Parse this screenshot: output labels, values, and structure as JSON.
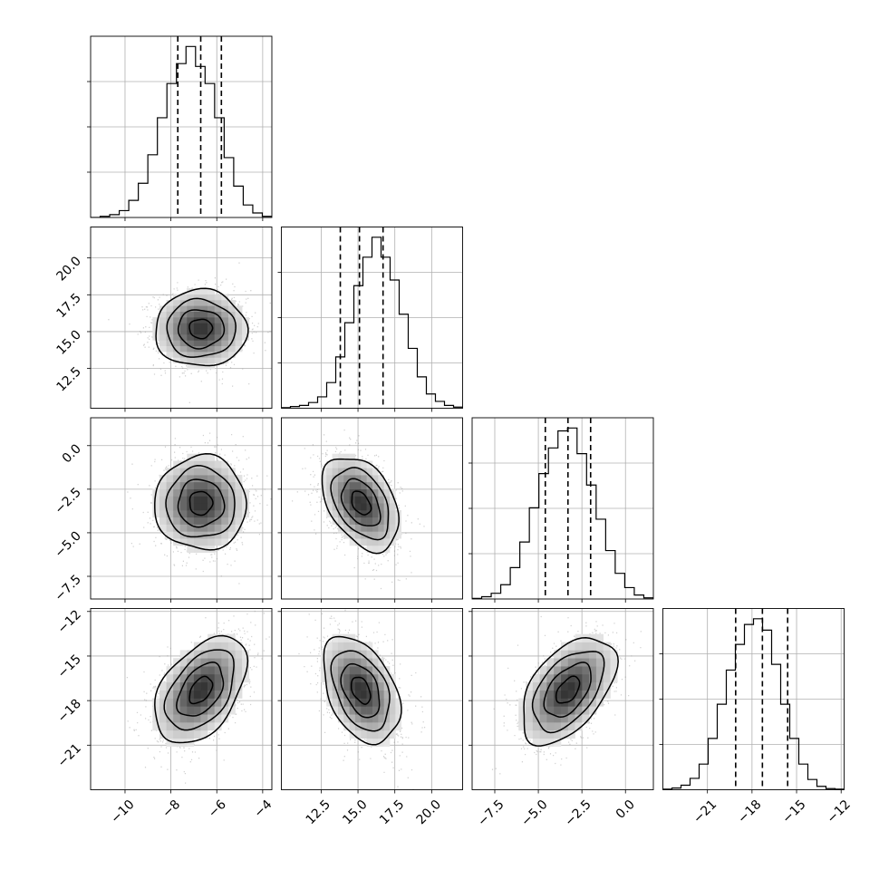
{
  "chart_data": {
    "type": "corner",
    "grid": true,
    "variables": [
      {
        "range": [
          -11.5,
          -3.6
        ],
        "ticks": [
          -10,
          -8,
          -6,
          -4
        ],
        "tick_labels": [
          "−10",
          "−8",
          "−6",
          "−4"
        ],
        "quantiles": [
          -7.7,
          -6.7,
          -5.8
        ],
        "hist": [
          0,
          2,
          5,
          12,
          30,
          60,
          110,
          175,
          235,
          270,
          300,
          265,
          235,
          175,
          105,
          55,
          22,
          8,
          2
        ]
      },
      {
        "range": [
          9.8,
          22.1
        ],
        "ticks": [
          12.5,
          15.0,
          17.5,
          20.0
        ],
        "tick_labels": [
          "12.5",
          "15.0",
          "17.5",
          "20.0"
        ],
        "quantiles": [
          13.8,
          15.1,
          16.7
        ],
        "hist": [
          1,
          3,
          5,
          10,
          20,
          45,
          90,
          150,
          215,
          265,
          300,
          265,
          225,
          165,
          105,
          55,
          25,
          12,
          5,
          2
        ]
      },
      {
        "range": [
          -8.8,
          1.6
        ],
        "ticks": [
          -7.5,
          -5.0,
          -2.5,
          0.0
        ],
        "tick_labels": [
          "−7.5",
          "−5.0",
          "−2.5",
          "0.0"
        ],
        "quantiles": [
          -4.6,
          -3.3,
          -2.0
        ],
        "hist": [
          1,
          4,
          10,
          25,
          55,
          100,
          160,
          220,
          265,
          295,
          300,
          255,
          200,
          140,
          85,
          45,
          20,
          7,
          2
        ]
      },
      {
        "range": [
          -24.0,
          -11.8
        ],
        "ticks": [
          -21,
          -18,
          -15,
          -12
        ],
        "tick_labels": [
          "−21",
          "−18",
          "−15",
          "−12"
        ],
        "quantiles": [
          -19.1,
          -17.3,
          -15.6
        ],
        "hist": [
          1,
          3,
          8,
          20,
          45,
          90,
          150,
          210,
          255,
          290,
          300,
          280,
          220,
          150,
          90,
          45,
          18,
          6,
          2,
          1
        ]
      }
    ],
    "pairs": [
      {
        "row": 1,
        "col": 0,
        "mean": [
          -6.7,
          15.2
        ],
        "sd": [
          1.0,
          1.3
        ],
        "rho": 0.0
      },
      {
        "row": 2,
        "col": 0,
        "mean": [
          -6.7,
          -3.3
        ],
        "sd": [
          1.0,
          1.35
        ],
        "rho": 0.0
      },
      {
        "row": 2,
        "col": 1,
        "mean": [
          15.2,
          -3.3
        ],
        "sd": [
          1.3,
          1.35
        ],
        "rho": -0.4
      },
      {
        "row": 3,
        "col": 0,
        "mean": [
          -6.7,
          -17.3
        ],
        "sd": [
          1.0,
          1.8
        ],
        "rho": 0.45
      },
      {
        "row": 3,
        "col": 1,
        "mean": [
          15.2,
          -17.3
        ],
        "sd": [
          1.3,
          1.8
        ],
        "rho": -0.4
      },
      {
        "row": 3,
        "col": 2,
        "mean": [
          -3.3,
          -17.3
        ],
        "sd": [
          1.35,
          1.8
        ],
        "rho": 0.5
      }
    ],
    "contour_levels_sigma": [
      0.5,
      1.0,
      1.5,
      2.0
    ]
  }
}
